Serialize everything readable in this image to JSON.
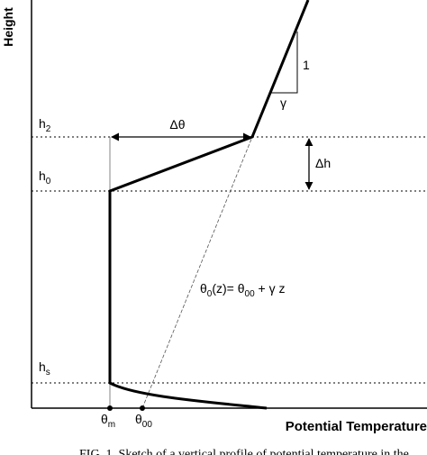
{
  "y_axis_label": "Height",
  "x_axis_label": "Potential Temperature",
  "levels": [
    {
      "base": "h",
      "sub": "2"
    },
    {
      "base": "h",
      "sub": "0"
    },
    {
      "base": "h",
      "sub": "s"
    }
  ],
  "x_marks": [
    {
      "base": "θ",
      "sub": "m"
    },
    {
      "base": "θ",
      "sub": "00"
    }
  ],
  "slope_rise": "1",
  "slope_run": "γ",
  "jump_theta": "Δθ",
  "jump_height": "Δh",
  "formula": {
    "a": "θ",
    "a_sub": "0",
    "b": "(z)= θ",
    "b_sub": "00",
    "c": " + γ z"
  },
  "caption": "FIG. 1. Sketch of a vertical profile of potential temperature in the"
}
